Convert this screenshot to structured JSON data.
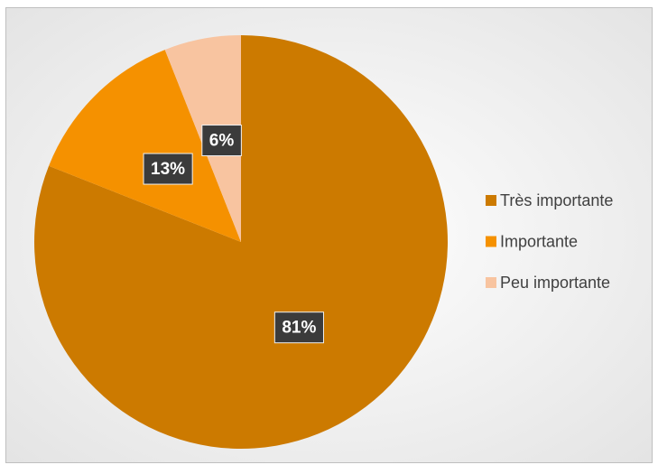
{
  "chart_data": {
    "type": "pie",
    "categories": [
      "Très importante",
      "Importante",
      "Peu importante"
    ],
    "values": [
      81,
      13,
      6
    ],
    "value_labels": [
      "81%",
      "13%",
      "6%"
    ],
    "colors": [
      "#cc7a00",
      "#f59100",
      "#f8c4a0"
    ],
    "legend": "right"
  }
}
